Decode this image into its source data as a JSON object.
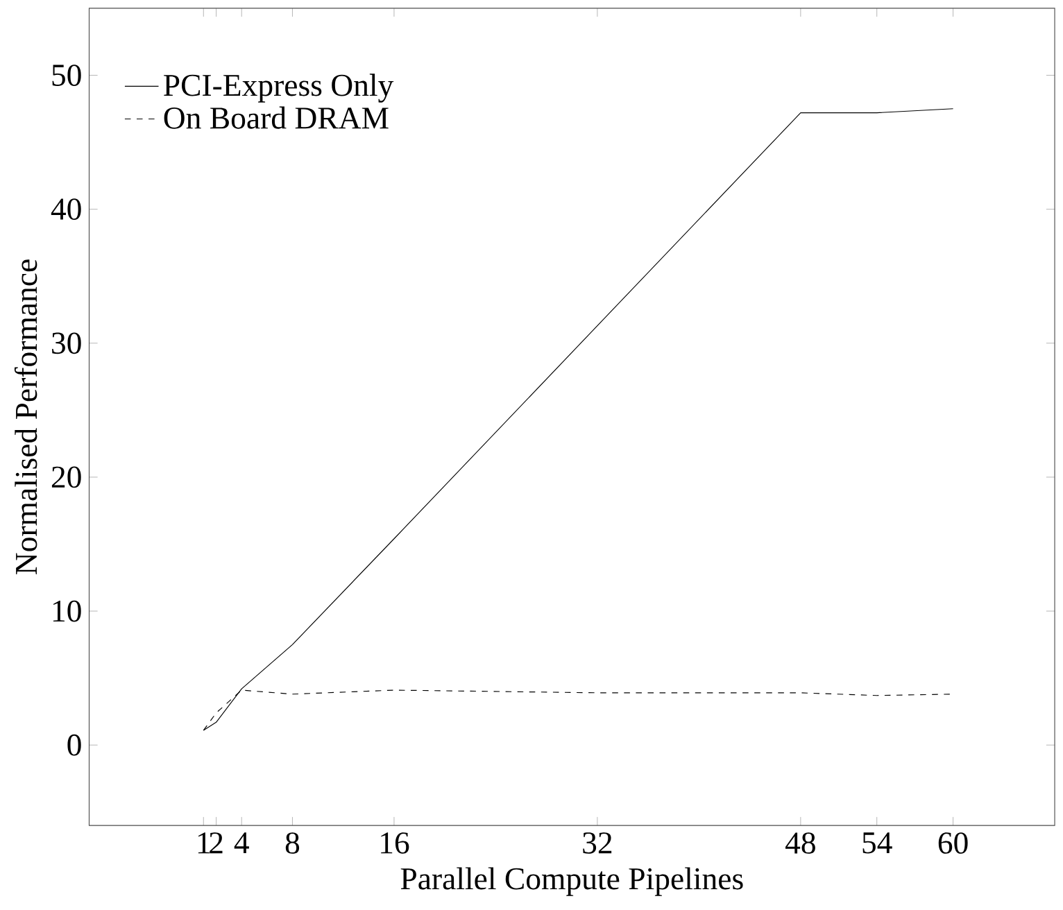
{
  "chart_data": {
    "type": "line",
    "xlabel": "Parallel Compute Pipelines",
    "ylabel": "Normalised Performance",
    "x": [
      1,
      2,
      4,
      8,
      16,
      32,
      48,
      54,
      60
    ],
    "series": [
      {
        "name": "PCI-Express Only",
        "color": "#000000",
        "line_style": "solid",
        "values": [
          1.1,
          1.7,
          4.2,
          7.5,
          15.4,
          31.3,
          47.2,
          47.2,
          47.5
        ]
      },
      {
        "name": "On Board DRAM",
        "color": "#000000",
        "line_style": "dashed",
        "values": [
          1.1,
          2.4,
          4.1,
          3.8,
          4.1,
          3.9,
          3.9,
          3.7,
          3.8
        ]
      }
    ],
    "xlim": [
      -8,
      68
    ],
    "ylim": [
      -6,
      55
    ],
    "xticks": [
      1,
      2,
      4,
      8,
      16,
      32,
      48,
      54,
      60
    ],
    "yticks": [
      0,
      10,
      20,
      30,
      40,
      50
    ],
    "legend": "top left",
    "marker": "none",
    "grid": false
  }
}
